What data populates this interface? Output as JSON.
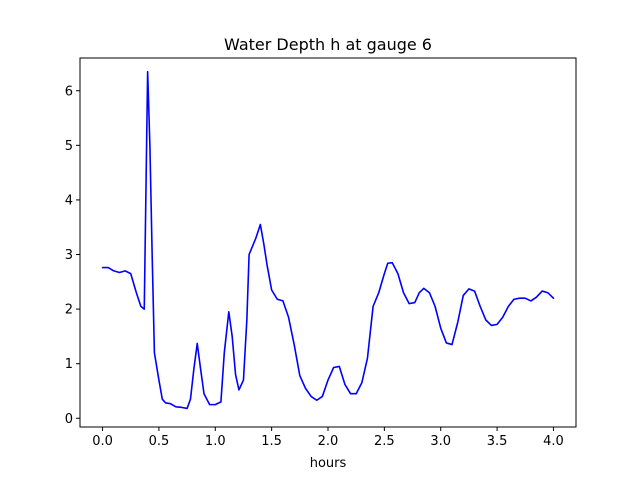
{
  "chart_data": {
    "type": "line",
    "title": "Water Depth h at gauge 6",
    "xlabel": "hours",
    "ylabel": "",
    "xlim": [
      -0.2,
      4.2
    ],
    "ylim": [
      -0.16,
      6.6
    ],
    "xticks": [
      0.0,
      0.5,
      1.0,
      1.5,
      2.0,
      2.5,
      3.0,
      3.5,
      4.0
    ],
    "xtick_labels": [
      "0.0",
      "0.5",
      "1.0",
      "1.5",
      "2.0",
      "2.5",
      "3.0",
      "3.5",
      "4.0"
    ],
    "yticks": [
      0,
      1,
      2,
      3,
      4,
      5,
      6
    ],
    "ytick_labels": [
      "0",
      "1",
      "2",
      "3",
      "4",
      "5",
      "6"
    ],
    "grid": false,
    "series": [
      {
        "color": "#0000ff",
        "x": [
          0.0,
          0.05,
          0.1,
          0.15,
          0.2,
          0.25,
          0.3,
          0.34,
          0.37,
          0.4,
          0.42,
          0.44,
          0.46,
          0.5,
          0.53,
          0.56,
          0.6,
          0.65,
          0.7,
          0.75,
          0.78,
          0.81,
          0.84,
          0.87,
          0.9,
          0.95,
          1.0,
          1.05,
          1.08,
          1.12,
          1.15,
          1.18,
          1.21,
          1.25,
          1.28,
          1.3,
          1.33,
          1.36,
          1.4,
          1.43,
          1.46,
          1.5,
          1.55,
          1.6,
          1.65,
          1.7,
          1.75,
          1.8,
          1.85,
          1.9,
          1.95,
          2.0,
          2.05,
          2.1,
          2.15,
          2.2,
          2.25,
          2.3,
          2.35,
          2.4,
          2.45,
          2.5,
          2.53,
          2.57,
          2.62,
          2.67,
          2.72,
          2.77,
          2.81,
          2.85,
          2.9,
          2.95,
          3.0,
          3.05,
          3.1,
          3.15,
          3.2,
          3.25,
          3.3,
          3.35,
          3.4,
          3.45,
          3.5,
          3.55,
          3.6,
          3.65,
          3.7,
          3.75,
          3.8,
          3.85,
          3.9,
          3.95,
          4.0
        ],
        "y": [
          2.76,
          2.76,
          2.7,
          2.67,
          2.7,
          2.65,
          2.3,
          2.05,
          2.0,
          6.35,
          5.0,
          3.0,
          1.2,
          0.7,
          0.35,
          0.28,
          0.27,
          0.21,
          0.2,
          0.18,
          0.35,
          0.9,
          1.37,
          0.9,
          0.45,
          0.25,
          0.25,
          0.3,
          1.2,
          1.95,
          1.5,
          0.8,
          0.52,
          0.7,
          1.8,
          3.0,
          3.15,
          3.3,
          3.55,
          3.2,
          2.8,
          2.35,
          2.18,
          2.15,
          1.85,
          1.35,
          0.78,
          0.55,
          0.4,
          0.33,
          0.4,
          0.7,
          0.93,
          0.95,
          0.62,
          0.45,
          0.45,
          0.65,
          1.1,
          2.05,
          2.3,
          2.65,
          2.84,
          2.85,
          2.65,
          2.3,
          2.1,
          2.12,
          2.3,
          2.38,
          2.3,
          2.05,
          1.65,
          1.38,
          1.35,
          1.75,
          2.25,
          2.37,
          2.33,
          2.05,
          1.8,
          1.7,
          1.72,
          1.85,
          2.05,
          2.18,
          2.2,
          2.2,
          2.15,
          2.22,
          2.33,
          2.3,
          2.2
        ]
      }
    ]
  }
}
